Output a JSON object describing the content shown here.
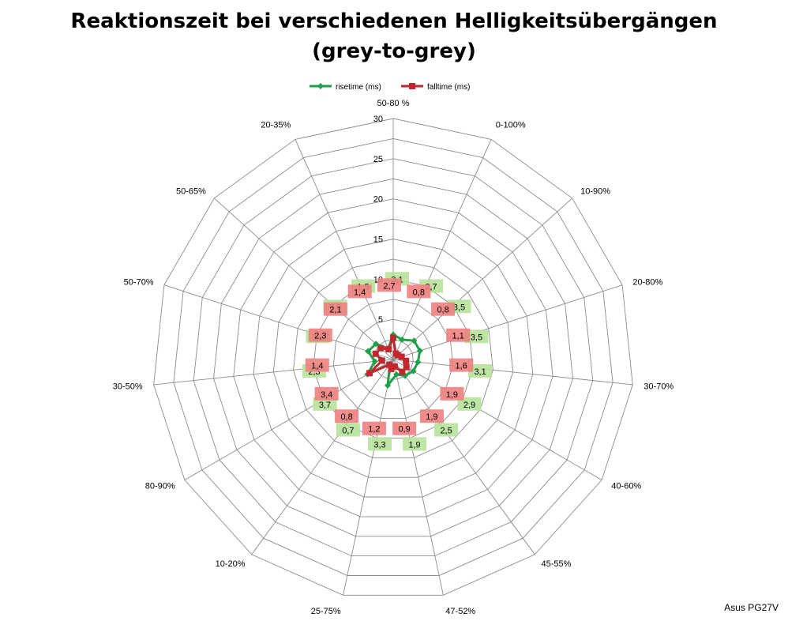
{
  "chart_data": {
    "type": "radar",
    "title": "Reaktionszeit bei verschiedenen Helligkeitsübergängen",
    "subtitle": "(grey-to-grey)",
    "categories": [
      "50-80 %",
      "0-100%",
      "10-90%",
      "20-80%",
      "30-70%",
      "40-60%",
      "45-55%",
      "47-52%",
      "25-75%",
      "10-20%",
      "80-90%",
      "30-50%",
      "50-70%",
      "50-65%",
      "20-35%"
    ],
    "ylim": [
      0,
      30
    ],
    "ticks": [
      0,
      5,
      10,
      15,
      20,
      25,
      30
    ],
    "grid": true,
    "legend_position": "top",
    "series": [
      {
        "name": "risetime (ms)",
        "color": "#1fa04a",
        "label_bg": "#b7e29a",
        "marker": "diamond",
        "values": [
          3.1,
          2.7,
          3.5,
          3.5,
          3.1,
          2.9,
          2.5,
          1.9,
          3.3,
          0.7,
          3.7,
          2.3,
          3.3,
          2.9,
          1.5
        ]
      },
      {
        "name": "falltime (ms)",
        "color": "#c0282d",
        "label_bg": "#f08080",
        "marker": "square",
        "values": [
          2.7,
          0.8,
          0.8,
          1.1,
          1.6,
          1.9,
          1.9,
          0.9,
          1.2,
          0.8,
          3.4,
          1.4,
          2.3,
          2.1,
          1.4
        ]
      }
    ]
  },
  "footer": "Asus PG27V"
}
